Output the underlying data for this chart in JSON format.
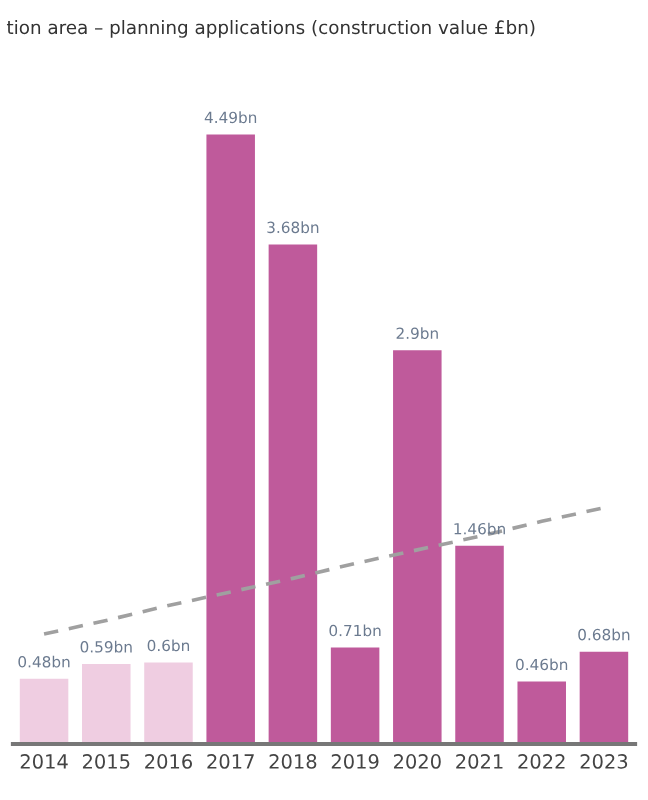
{
  "chart_data": {
    "type": "bar",
    "title": "tion area – planning applications (construction value £bn)",
    "categories": [
      "2014",
      "2015",
      "2016",
      "2017",
      "2018",
      "2019",
      "2020",
      "2021",
      "2022",
      "2023"
    ],
    "values": [
      0.48,
      0.59,
      0.6,
      4.49,
      3.68,
      0.71,
      2.9,
      1.46,
      0.46,
      0.68
    ],
    "colors": [
      "#efcde1",
      "#efcde1",
      "#efcde1",
      "#bf5a9b",
      "#bf5a9b",
      "#bf5a9b",
      "#bf5a9b",
      "#bf5a9b",
      "#bf5a9b",
      "#bf5a9b"
    ],
    "value_labels": [
      "0.48bn",
      "0.59bn",
      "0.6bn",
      "4.49bn",
      "3.68bn",
      "0.71bn",
      "2.9bn",
      "1.46bn",
      "0.46bn",
      "0.68bn"
    ],
    "series": [
      {
        "type": "line",
        "values": [
          0.81,
          0.91,
          1.02,
          1.12,
          1.22,
          1.33,
          1.43,
          1.53,
          1.64,
          1.74
        ],
        "color": "#a0a0a0",
        "line_style": "dashed"
      }
    ],
    "tick_labels": "x",
    "grid": false,
    "legend": false
  }
}
